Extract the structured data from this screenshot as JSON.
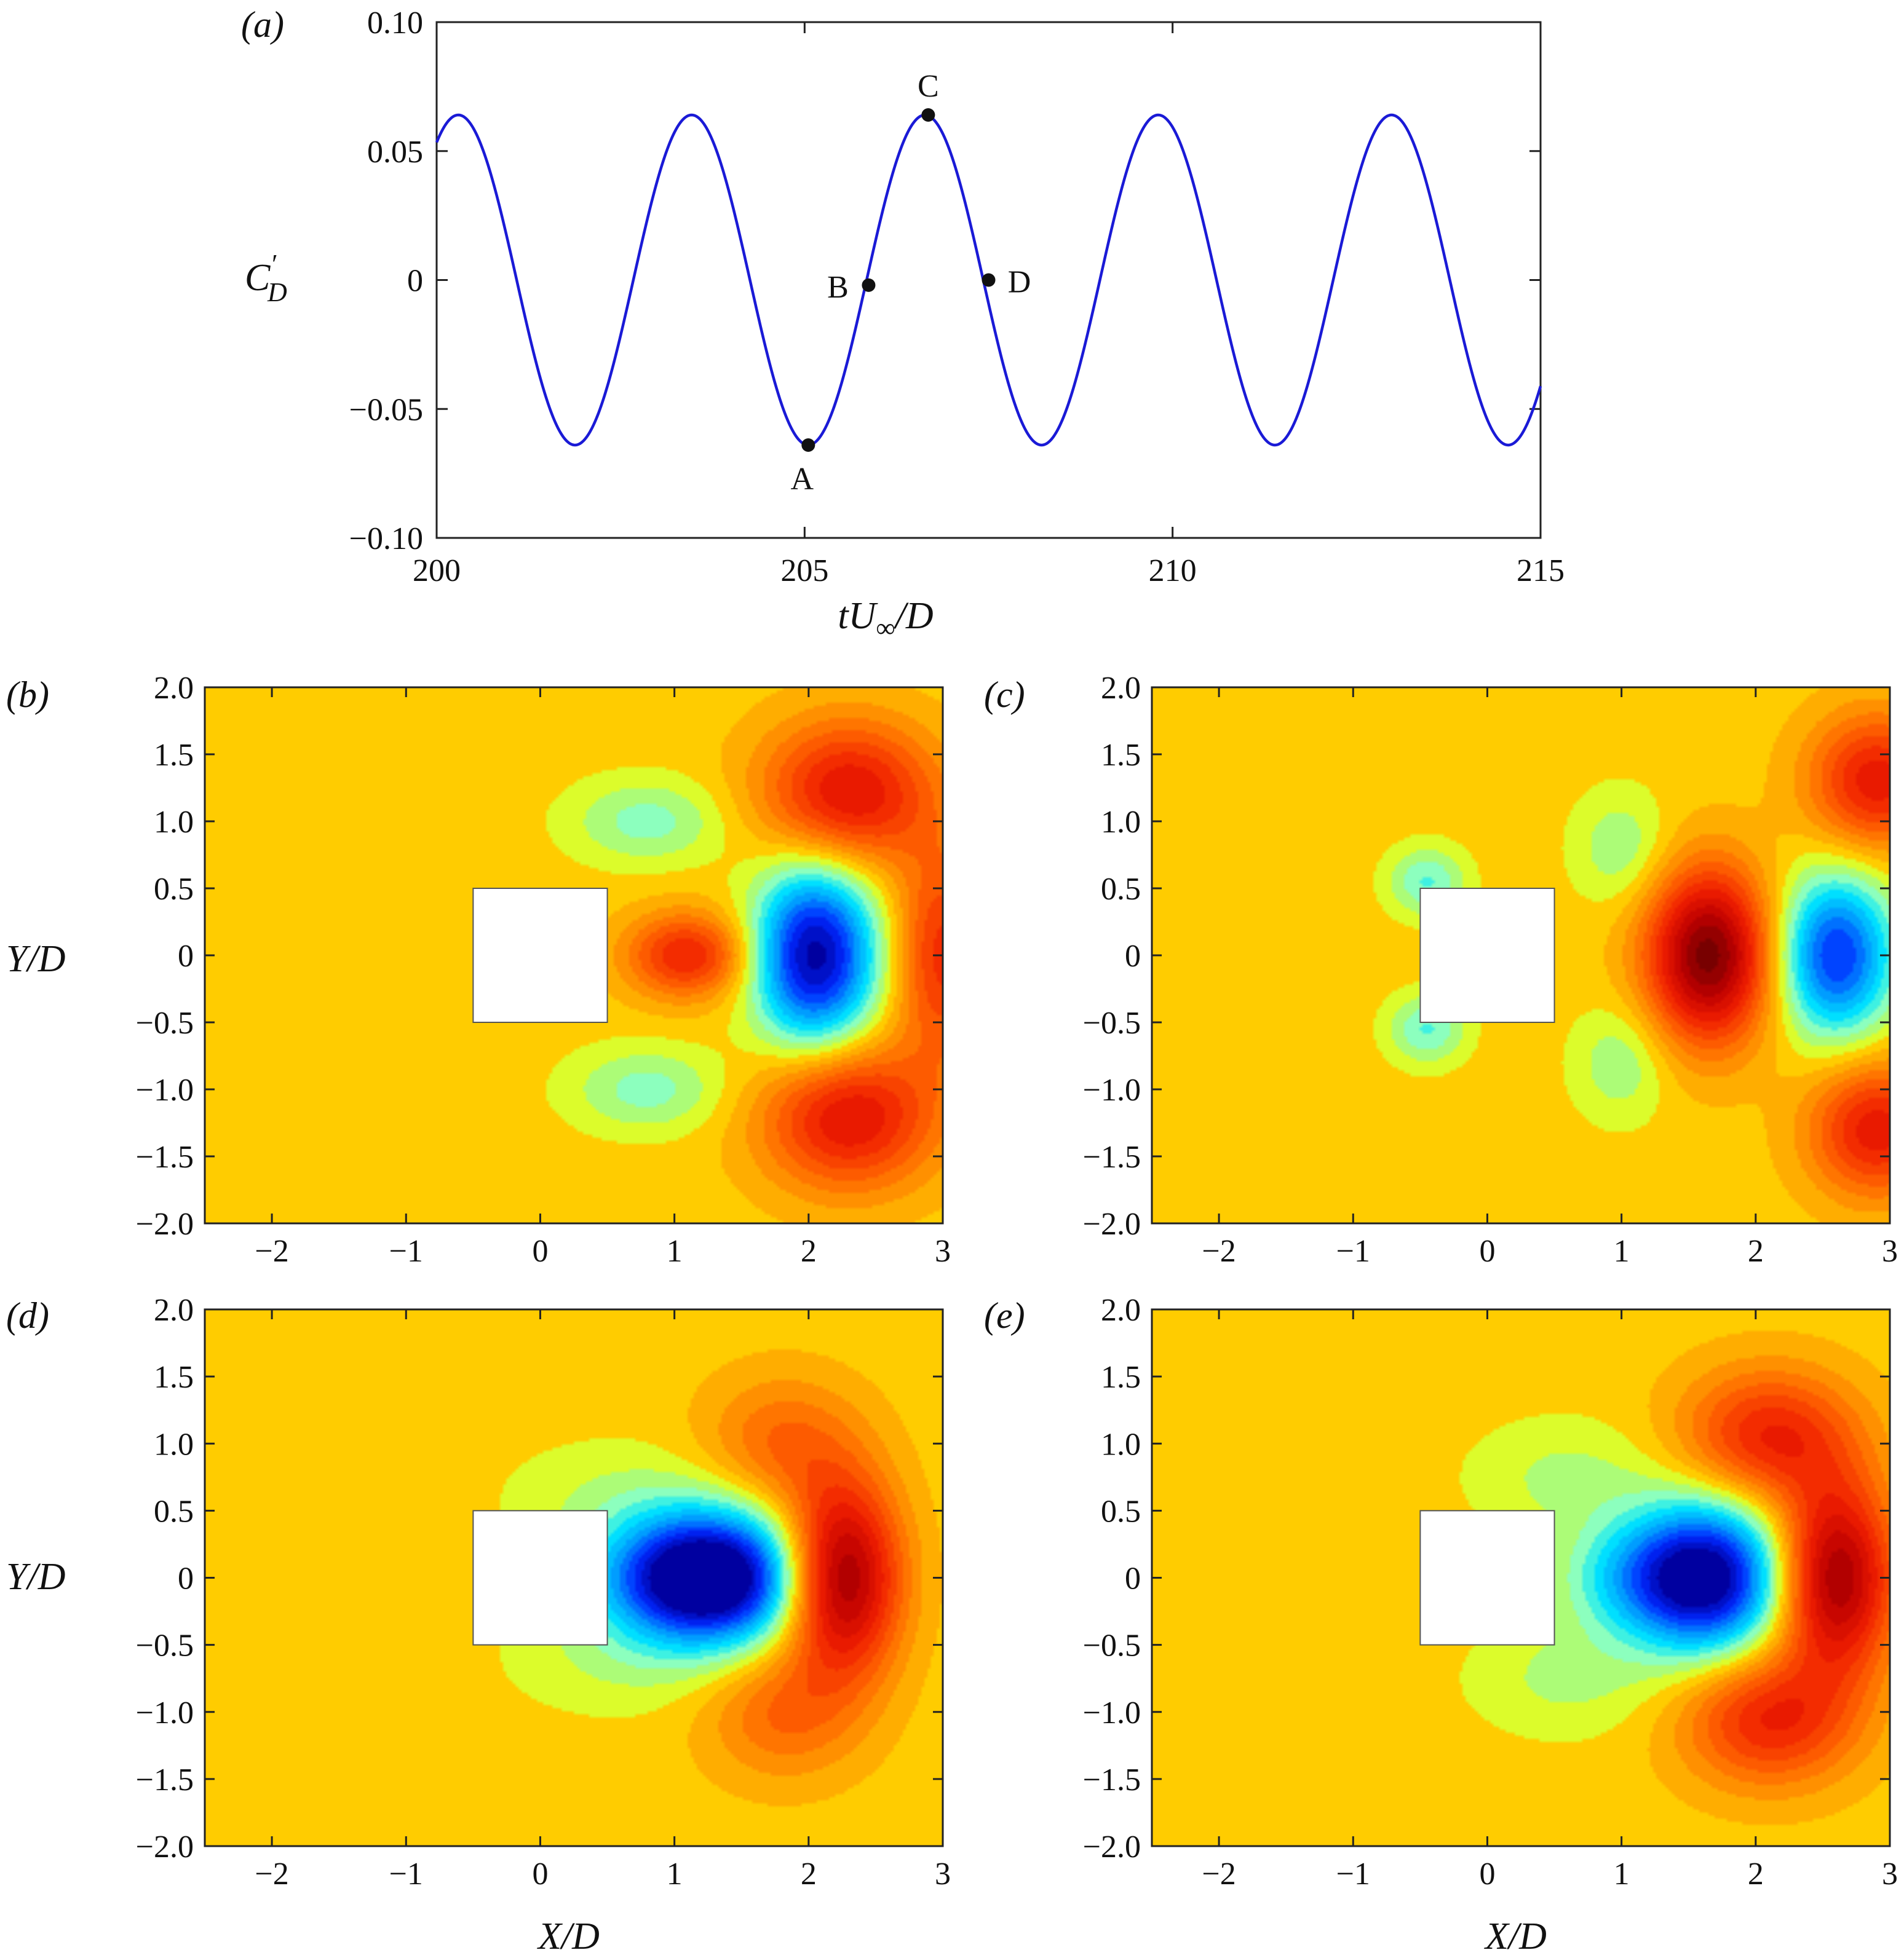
{
  "chart_data": [
    {
      "panel": "(a)",
      "type": "line",
      "xlabel": "tU∞/D",
      "ylabel": "C'D",
      "xlim": [
        200,
        215
      ],
      "ylim": [
        -0.1,
        0.1
      ],
      "x_ticks": [
        "200",
        "205",
        "210",
        "215"
      ],
      "y_ticks": [
        "0.10",
        "0.05",
        "0",
        "−0.05",
        "−0.10"
      ],
      "series": [
        {
          "name": "C'D",
          "amplitude": 0.064,
          "period": 3.17,
          "t_min": 205.05,
          "color": "#1a1ad6"
        }
      ],
      "points": [
        {
          "label": "A",
          "x": 205.05,
          "y": -0.064
        },
        {
          "label": "B",
          "x": 205.87,
          "y": -0.002
        },
        {
          "label": "C",
          "x": 206.68,
          "y": 0.064
        },
        {
          "label": "D",
          "x": 207.5,
          "y": 0.0
        }
      ]
    },
    {
      "panel": "(b)",
      "type": "heatmap",
      "xlim": [
        -2.5,
        3
      ],
      "ylim": [
        -2,
        2
      ],
      "xlabel": "",
      "ylabel": "Y/D",
      "body": {
        "x": [
          -0.5,
          0.5
        ],
        "y": [
          -0.5,
          0.5
        ]
      },
      "features": [
        {
          "x": 1.1,
          "y": 0,
          "value": 0.55,
          "sx": 0.32,
          "sy": 0.22
        },
        {
          "x": 2.05,
          "y": 0,
          "value": -1.0,
          "sx": 0.32,
          "sy": 0.48
        },
        {
          "x": 2.3,
          "y": 1.2,
          "value": 0.65,
          "sx": 0.45,
          "sy": 0.38
        },
        {
          "x": 2.3,
          "y": -1.2,
          "value": 0.65,
          "sx": 0.45,
          "sy": 0.38
        },
        {
          "x": 0.8,
          "y": 1.0,
          "value": -0.25,
          "sx": 0.4,
          "sy": 0.22
        },
        {
          "x": 0.8,
          "y": -1.0,
          "value": -0.25,
          "sx": 0.4,
          "sy": 0.22
        },
        {
          "x": 3.0,
          "y": 0,
          "value": 0.5,
          "sx": 0.25,
          "sy": 0.55
        }
      ]
    },
    {
      "panel": "(c)",
      "type": "heatmap",
      "xlim": [
        -2.5,
        3
      ],
      "ylim": [
        -2,
        2
      ],
      "xlabel": "",
      "ylabel": "",
      "body": {
        "x": [
          -0.5,
          0.5
        ],
        "y": [
          -0.5,
          0.5
        ]
      },
      "features": [
        {
          "x": 1.65,
          "y": 0,
          "value": 1.0,
          "sx": 0.32,
          "sy": 0.45
        },
        {
          "x": 2.6,
          "y": 0,
          "value": -0.8,
          "sx": 0.3,
          "sy": 0.42
        },
        {
          "x": 2.9,
          "y": 1.3,
          "value": 0.6,
          "sx": 0.35,
          "sy": 0.35
        },
        {
          "x": 2.9,
          "y": -1.3,
          "value": 0.6,
          "sx": 0.35,
          "sy": 0.35
        },
        {
          "x": -0.45,
          "y": 0.55,
          "value": -0.3,
          "sx": 0.2,
          "sy": 0.18
        },
        {
          "x": -0.45,
          "y": -0.55,
          "value": -0.3,
          "sx": 0.2,
          "sy": 0.18
        },
        {
          "x": 1.0,
          "y": 0.8,
          "value": -0.2,
          "sx": 0.25,
          "sy": 0.3
        },
        {
          "x": 1.0,
          "y": -0.8,
          "value": -0.2,
          "sx": 0.25,
          "sy": 0.3
        }
      ]
    },
    {
      "panel": "(d)",
      "type": "heatmap",
      "xlim": [
        -2.5,
        3
      ],
      "ylim": [
        -2,
        2
      ],
      "xlabel": "X/D",
      "ylabel": "Y/D",
      "body": {
        "x": [
          -0.5,
          0.5
        ],
        "y": [
          -0.5,
          0.5
        ]
      },
      "features": [
        {
          "x": 1.35,
          "y": 0,
          "value": -1.0,
          "sx": 0.45,
          "sy": 0.35
        },
        {
          "x": 0.9,
          "y": 0,
          "value": -0.45,
          "sx": 0.45,
          "sy": 0.3
        },
        {
          "x": 2.25,
          "y": 0,
          "value": 0.95,
          "sx": 0.3,
          "sy": 0.5
        },
        {
          "x": 1.8,
          "y": 1.0,
          "value": 0.3,
          "sx": 0.4,
          "sy": 0.35
        },
        {
          "x": 1.8,
          "y": -1.0,
          "value": 0.3,
          "sx": 0.4,
          "sy": 0.35
        },
        {
          "x": 0.6,
          "y": 0.6,
          "value": -0.12,
          "sx": 0.6,
          "sy": 0.3
        },
        {
          "x": 0.6,
          "y": -0.6,
          "value": -0.12,
          "sx": 0.6,
          "sy": 0.3
        }
      ]
    },
    {
      "panel": "(e)",
      "type": "heatmap",
      "xlim": [
        -2.5,
        3
      ],
      "ylim": [
        -2,
        2
      ],
      "xlabel": "X/D",
      "ylabel": "",
      "body": {
        "x": [
          -0.5,
          0.5
        ],
        "y": [
          -0.5,
          0.5
        ]
      },
      "features": [
        {
          "x": 1.65,
          "y": 0,
          "value": -1.0,
          "sx": 0.4,
          "sy": 0.4
        },
        {
          "x": 1.1,
          "y": 0,
          "value": -0.35,
          "sx": 0.4,
          "sy": 0.3
        },
        {
          "x": 2.6,
          "y": 0,
          "value": 0.9,
          "sx": 0.3,
          "sy": 0.5
        },
        {
          "x": 2.1,
          "y": 1.05,
          "value": 0.55,
          "sx": 0.45,
          "sy": 0.35
        },
        {
          "x": 2.1,
          "y": -1.05,
          "value": 0.55,
          "sx": 0.45,
          "sy": 0.35
        },
        {
          "x": 0.6,
          "y": 0.75,
          "value": -0.15,
          "sx": 0.5,
          "sy": 0.3
        },
        {
          "x": 0.6,
          "y": -0.75,
          "value": -0.15,
          "sx": 0.5,
          "sy": 0.3
        }
      ]
    }
  ],
  "contour_x_ticks": [
    "−2",
    "−1",
    "0",
    "1",
    "2",
    "3"
  ],
  "contour_y_ticks": [
    "2.0",
    "1.5",
    "1.0",
    "0.5",
    "0",
    "−0.5",
    "−1.0",
    "−1.5",
    "−2.0"
  ],
  "colors": {
    "background": "#ffcc00",
    "line": "#1a1ad6",
    "body": "#ffffff"
  }
}
